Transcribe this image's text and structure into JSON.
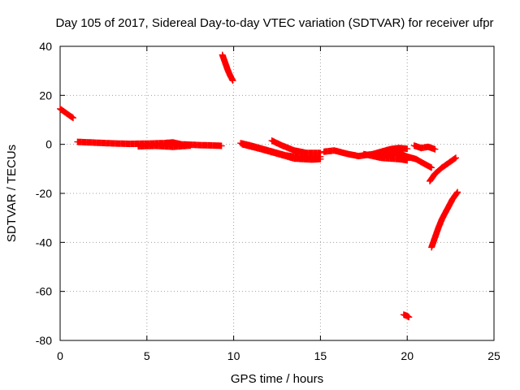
{
  "chart_data": {
    "type": "scatter",
    "title": "Day 105 of 2017, Sidereal Day-to-day VTEC variation (SDTVAR) for receiver ufpr",
    "xlabel": "GPS time / hours",
    "ylabel": "SDTVAR / TECUs",
    "xlim": [
      0,
      25
    ],
    "ylim": [
      -80,
      40
    ],
    "xticks": [
      0,
      5,
      10,
      15,
      20,
      25
    ],
    "yticks": [
      -80,
      -60,
      -40,
      -20,
      0,
      20,
      40
    ],
    "grid": true,
    "marker": "plus",
    "color": "#ff0000",
    "series": [
      {
        "segments": [
          [
            [
              0.0,
              14.5
            ],
            [
              0.2,
              13.5
            ],
            [
              0.4,
              12.5
            ],
            [
              0.6,
              11.5
            ],
            [
              0.75,
              10.8
            ]
          ],
          [
            [
              1.0,
              1.0
            ],
            [
              2.0,
              0.7
            ],
            [
              3.0,
              0.4
            ],
            [
              4.0,
              0.2
            ],
            [
              5.0,
              0.3
            ],
            [
              6.0,
              0.5
            ],
            [
              6.5,
              0.8
            ],
            [
              7.0,
              0.0
            ],
            [
              8.0,
              -0.3
            ],
            [
              9.0,
              -0.5
            ],
            [
              9.3,
              -0.6
            ]
          ],
          [
            [
              4.5,
              -0.8
            ],
            [
              5.5,
              -0.6
            ],
            [
              6.5,
              -1.0
            ],
            [
              7.5,
              -0.5
            ]
          ],
          [
            [
              9.35,
              36.5
            ],
            [
              9.5,
              33.5
            ],
            [
              9.65,
              30.5
            ],
            [
              9.8,
              28.0
            ],
            [
              9.95,
              26.0
            ]
          ],
          [
            [
              10.4,
              0.5
            ],
            [
              11.0,
              -0.5
            ],
            [
              12.0,
              -2.5
            ],
            [
              13.0,
              -4.5
            ],
            [
              14.0,
              -5.5
            ],
            [
              15.0,
              -5.0
            ]
          ],
          [
            [
              10.5,
              0.0
            ],
            [
              11.5,
              -1.8
            ],
            [
              12.5,
              -3.8
            ],
            [
              13.5,
              -5.8
            ],
            [
              14.5,
              -6.2
            ],
            [
              15.0,
              -6.0
            ]
          ],
          [
            [
              12.2,
              1.5
            ],
            [
              12.8,
              -0.5
            ],
            [
              13.5,
              -2.5
            ],
            [
              14.2,
              -3.5
            ],
            [
              15.0,
              -3.5
            ]
          ],
          [
            [
              15.2,
              -3.0
            ],
            [
              15.8,
              -2.5
            ],
            [
              16.5,
              -3.8
            ],
            [
              17.2,
              -4.8
            ],
            [
              18.0,
              -4.0
            ],
            [
              18.5,
              -3.0
            ],
            [
              19.0,
              -2.0
            ],
            [
              19.5,
              -1.5
            ],
            [
              20.0,
              -1.8
            ]
          ],
          [
            [
              18.0,
              -4.5
            ],
            [
              18.5,
              -5.0
            ],
            [
              19.0,
              -4.0
            ],
            [
              19.5,
              -3.5
            ],
            [
              20.0,
              -5.0
            ],
            [
              20.5,
              -6.0
            ],
            [
              21.0,
              -8.0
            ],
            [
              21.4,
              -9.5
            ]
          ],
          [
            [
              17.5,
              -4.0
            ],
            [
              18.5,
              -5.5
            ],
            [
              19.5,
              -6.0
            ],
            [
              20.0,
              -6.5
            ]
          ],
          [
            [
              20.4,
              -0.5
            ],
            [
              20.8,
              -1.5
            ],
            [
              21.2,
              -1.0
            ],
            [
              21.6,
              -2.0
            ]
          ],
          [
            [
              21.3,
              -15.0
            ],
            [
              21.6,
              -12.0
            ],
            [
              22.0,
              -9.5
            ],
            [
              22.4,
              -7.5
            ],
            [
              22.8,
              -5.5
            ]
          ],
          [
            [
              21.4,
              -42.0
            ],
            [
              21.6,
              -38.0
            ],
            [
              21.8,
              -34.0
            ],
            [
              22.0,
              -30.5
            ],
            [
              22.3,
              -26.5
            ],
            [
              22.6,
              -22.5
            ],
            [
              22.9,
              -19.5
            ]
          ],
          [
            [
              19.8,
              -69.5
            ],
            [
              20.0,
              -70.0
            ],
            [
              20.1,
              -70.5
            ]
          ]
        ]
      }
    ]
  }
}
